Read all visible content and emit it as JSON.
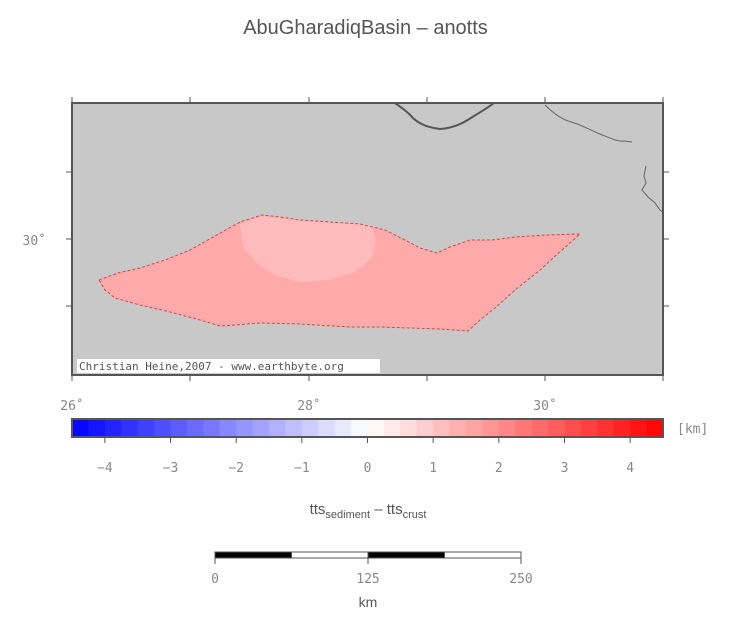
{
  "title": "AbuGharadiqBasin – anotts",
  "map": {
    "lat_labels": [
      "30˚"
    ],
    "lon_labels": [
      "26˚",
      "28˚",
      "30˚"
    ],
    "credit": "Christian Heine,2007 - www.earthbyte.org",
    "background_color": "#c8c8c8",
    "basin_fill_colors": [
      "#ffaaaa",
      "#ffbbbb"
    ]
  },
  "colorbar": {
    "unit": "[km]",
    "range": [
      -4.5,
      4.5
    ],
    "tick_labels": [
      "−4",
      "−3",
      "−2",
      "−1",
      "0",
      "1",
      "2",
      "3",
      "4"
    ],
    "low_color": "#0000ff",
    "mid_color": "#ffffff",
    "high_color": "#ff0000"
  },
  "formula": {
    "base1": "tts",
    "sub1": "sediment",
    "op": " – ",
    "base2": "tts",
    "sub2": "crust"
  },
  "scalebar": {
    "tick_labels": [
      "0",
      "125",
      "250"
    ],
    "unit": "km"
  }
}
